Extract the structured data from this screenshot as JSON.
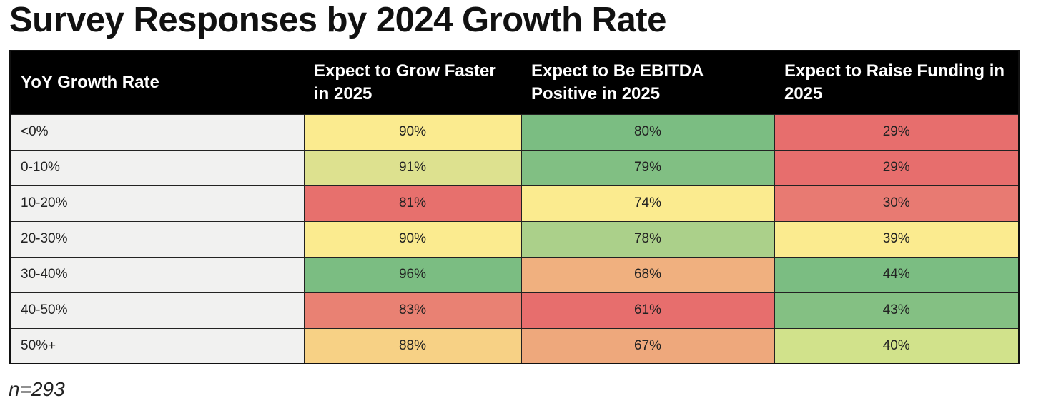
{
  "chart_data": {
    "type": "table",
    "title": "Survey Responses by 2024 Growth Rate",
    "columns": [
      "YoY Growth Rate",
      "Expect to Grow Faster in 2025",
      "Expect to Be EBITDA Positive in 2025",
      "Expect to Raise Funding in 2025"
    ],
    "rows": [
      {
        "label": "<0%",
        "cells": [
          {
            "value": "90%",
            "color": "#fbeb8f"
          },
          {
            "value": "80%",
            "color": "#7bbd82"
          },
          {
            "value": "29%",
            "color": "#e76e6d"
          }
        ]
      },
      {
        "label": "0-10%",
        "cells": [
          {
            "value": "91%",
            "color": "#dde18f"
          },
          {
            "value": "79%",
            "color": "#81bf83"
          },
          {
            "value": "29%",
            "color": "#e76e6d"
          }
        ]
      },
      {
        "label": "10-20%",
        "cells": [
          {
            "value": "81%",
            "color": "#e7706d"
          },
          {
            "value": "74%",
            "color": "#fbeb8f"
          },
          {
            "value": "30%",
            "color": "#e87a72"
          }
        ]
      },
      {
        "label": "20-30%",
        "cells": [
          {
            "value": "90%",
            "color": "#fbeb8f"
          },
          {
            "value": "78%",
            "color": "#abd08a"
          },
          {
            "value": "39%",
            "color": "#fbeb8f"
          }
        ]
      },
      {
        "label": "30-40%",
        "cells": [
          {
            "value": "96%",
            "color": "#7bbd82"
          },
          {
            "value": "68%",
            "color": "#f0b07f"
          },
          {
            "value": "44%",
            "color": "#7bbd82"
          }
        ]
      },
      {
        "label": "40-50%",
        "cells": [
          {
            "value": "83%",
            "color": "#e98173"
          },
          {
            "value": "61%",
            "color": "#e76e6d"
          },
          {
            "value": "43%",
            "color": "#84c083"
          }
        ]
      },
      {
        "label": "50%+",
        "cells": [
          {
            "value": "88%",
            "color": "#f7d185"
          },
          {
            "value": "67%",
            "color": "#eea87c"
          },
          {
            "value": "40%",
            "color": "#d1e28b"
          }
        ]
      }
    ],
    "footnote": "n=293"
  }
}
